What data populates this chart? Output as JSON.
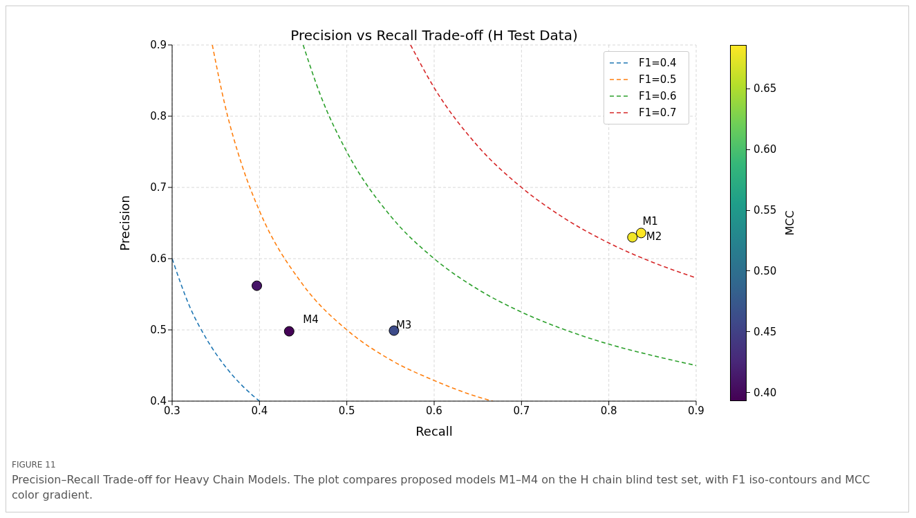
{
  "chart_data": {
    "type": "scatter",
    "title": "Precision vs Recall Trade-off (H Test Data)",
    "xlabel": "Recall",
    "ylabel": "Precision",
    "clabel": "MCC",
    "xlim": [
      0.3,
      0.9
    ],
    "xticks": [
      0.3,
      0.4,
      0.5,
      0.6,
      0.7,
      0.8,
      0.9
    ],
    "ylim": [
      0.4,
      0.9
    ],
    "yticks": [
      0.4,
      0.5,
      0.6,
      0.7,
      0.8,
      0.9
    ],
    "clim": [
      0.393,
      0.686
    ],
    "cticks": [
      {
        "value": 0.4,
        "label": "0.40"
      },
      0.45,
      {
        "value": 0.5,
        "label": "0.50"
      },
      0.55,
      {
        "value": 0.6,
        "label": "0.60"
      },
      0.65
    ],
    "grid": true,
    "legend": "top right",
    "series": [
      {
        "type": "line",
        "marker": "none",
        "name": "F1=0.4",
        "color": "#1f77b4",
        "line_style": "dashed",
        "x": [
          0.3,
          0.32,
          0.34,
          0.36,
          0.38,
          0.4
        ],
        "values": [
          0.6,
          0.533,
          0.486,
          0.45,
          0.422,
          0.4
        ]
      },
      {
        "type": "line",
        "marker": "none",
        "name": "F1=0.5",
        "color": "#ff7f0e",
        "line_style": "dashed",
        "x": [
          0.346,
          0.36,
          0.38,
          0.4,
          0.45,
          0.5,
          0.55,
          0.6,
          0.65,
          0.667
        ],
        "values": [
          0.9,
          0.818,
          0.731,
          0.667,
          0.563,
          0.5,
          0.458,
          0.429,
          0.406,
          0.4
        ]
      },
      {
        "type": "line",
        "marker": "none",
        "name": "F1=0.6",
        "color": "#2ca02c",
        "line_style": "dashed",
        "x": [
          0.45,
          0.47,
          0.5,
          0.55,
          0.6,
          0.65,
          0.7,
          0.75,
          0.8,
          0.85,
          0.9
        ],
        "values": [
          0.9,
          0.829,
          0.75,
          0.66,
          0.6,
          0.557,
          0.525,
          0.5,
          0.48,
          0.464,
          0.45
        ]
      },
      {
        "type": "line",
        "marker": "none",
        "name": "F1=0.7",
        "color": "#d62728",
        "line_style": "dashed",
        "x": [
          0.573,
          0.6,
          0.65,
          0.7,
          0.75,
          0.8,
          0.85,
          0.9
        ],
        "values": [
          0.9,
          0.84,
          0.758,
          0.7,
          0.656,
          0.622,
          0.595,
          0.573
        ]
      },
      {
        "type": "scatter",
        "marker": "circle",
        "colors": [
          "#fde725",
          "#f0e526",
          "#3d4b89",
          "#440356",
          "#461567"
        ],
        "x": [
          0.837,
          0.827,
          0.554,
          0.434,
          0.397
        ],
        "values": [
          0.636,
          0.63,
          0.499,
          0.498,
          0.562
        ],
        "cvalues": [
          0.686,
          0.68,
          0.46,
          0.395,
          0.41
        ]
      }
    ],
    "annotations": [
      {
        "text": "M1",
        "x": 0.837,
        "y": 0.636
      },
      {
        "text": "M2",
        "x": 0.827,
        "y": 0.63
      },
      {
        "text": "M3",
        "x": 0.554,
        "y": 0.499
      },
      {
        "text": "M4",
        "x": 0.434,
        "y": 0.498
      },
      "FIGURE 11",
      "Precision–Recall Trade-off for Heavy Chain Models. The plot compares proposed models M1–M4 on the H chain blind test set, with F1 iso-contours and MCC color gradient."
    ]
  }
}
